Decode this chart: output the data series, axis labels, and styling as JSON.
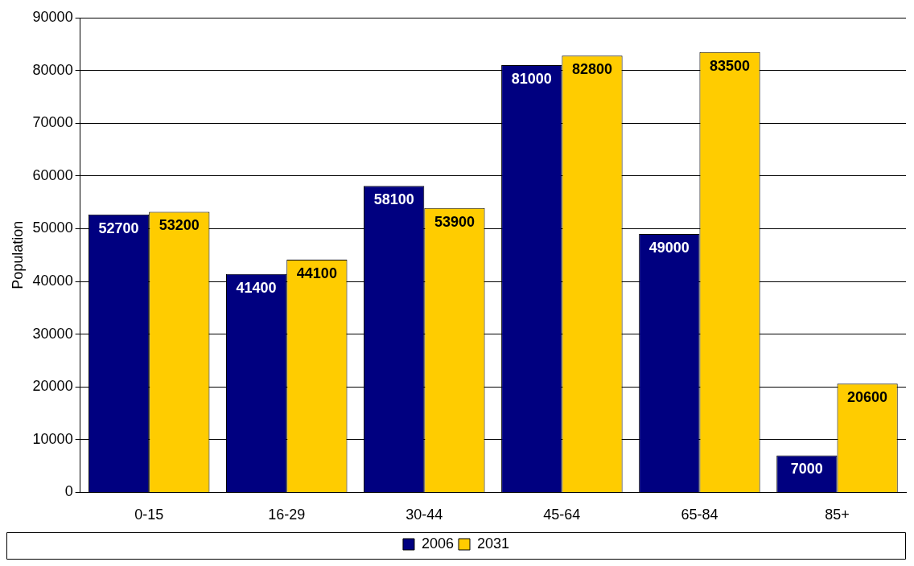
{
  "chart_data": {
    "type": "bar",
    "ylabel": "Population",
    "categories": [
      "0-15",
      "16-29",
      "30-44",
      "45-64",
      "65-84",
      "85+"
    ],
    "series": [
      {
        "name": "2006",
        "color": "#000080",
        "values": [
          52700,
          41400,
          58100,
          81000,
          49000,
          7000
        ]
      },
      {
        "name": "2031",
        "color": "#ffcc00",
        "values": [
          53200,
          44100,
          53900,
          82800,
          83500,
          20600
        ]
      }
    ],
    "ylim": [
      0,
      90000
    ],
    "yticks": [
      0,
      10000,
      20000,
      30000,
      40000,
      50000,
      60000,
      70000,
      80000,
      90000
    ],
    "grid": "y",
    "legend": "bottom",
    "data_labels": true
  }
}
